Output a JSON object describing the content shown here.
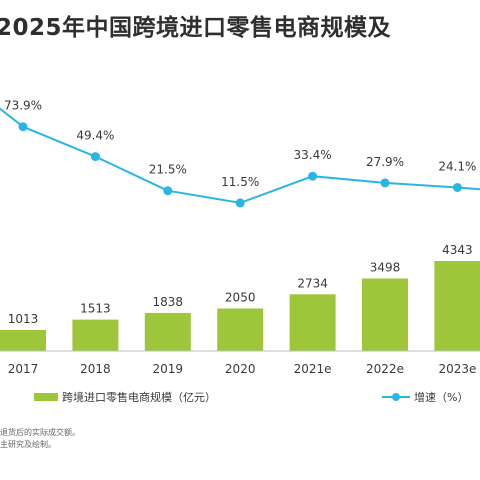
{
  "title": "-2025年中国跨境进口零售电商规模及",
  "legend": {
    "bar_label": "跨境进口零售电商规模（亿元）",
    "line_label": "增速（%）"
  },
  "footnotes": [
    "退货后的实际成交额。",
    "主研究及绘制。"
  ],
  "colors": {
    "bar": "#9dc63b",
    "line": "#2ab6e4",
    "text": "#3a3a3a",
    "axis": "#bfbfbf"
  },
  "chart_data": {
    "type": "bar+line",
    "categories": [
      "2017",
      "2018",
      "2019",
      "2020",
      "2021e",
      "2022e",
      "2023e"
    ],
    "series": [
      {
        "name": "跨境进口零售电商规模（亿元）",
        "type": "bar",
        "values": [
          1013,
          1513,
          1838,
          2050,
          2734,
          3498,
          4343
        ]
      },
      {
        "name": "增速（%）",
        "type": "line",
        "values": [
          73.9,
          49.4,
          21.5,
          11.5,
          33.4,
          27.9,
          24.1
        ]
      }
    ],
    "bar_labels": [
      "1013",
      "1513",
      "1838",
      "2050",
      "2734",
      "3498",
      "4343"
    ],
    "line_labels": [
      "73.9%",
      "49.4%",
      "21.5%",
      "11.5%",
      "33.4%",
      "27.9%",
      "24.1%"
    ],
    "axes_visible": false,
    "grid": false,
    "legend_position": "bottom"
  }
}
